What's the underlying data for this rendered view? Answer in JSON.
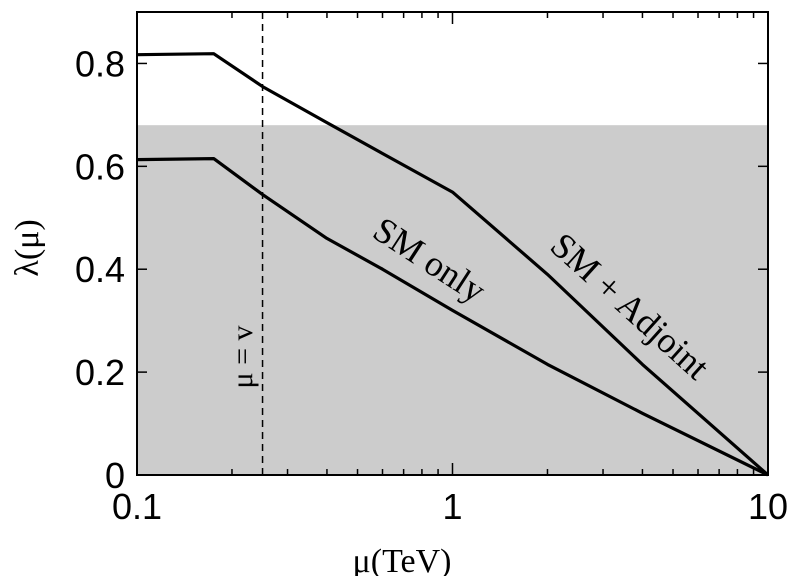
{
  "chart_data": {
    "type": "line",
    "xscale": "log",
    "xlabel": "μ(TeV)",
    "ylabel": "λ(μ)",
    "xlim": [
      0.1,
      10
    ],
    "ylim": [
      0,
      0.9
    ],
    "xticks": [
      {
        "value": 0.1,
        "label": "0.1"
      },
      {
        "value": 1,
        "label": "1"
      },
      {
        "value": 10,
        "label": "10"
      }
    ],
    "yticks": [
      {
        "value": 0,
        "label": "0"
      },
      {
        "value": 0.2,
        "label": "0.2"
      },
      {
        "value": 0.4,
        "label": "0.4"
      },
      {
        "value": 0.6,
        "label": "0.6"
      },
      {
        "value": 0.8,
        "label": "0.8"
      }
    ],
    "shaded_region": {
      "y_min": 0,
      "y_max": 0.68,
      "color": "#cccccc"
    },
    "vline": {
      "x": 0.25,
      "label": "μ = v",
      "style": "dashed"
    },
    "series": [
      {
        "name": "SM + Adjoint",
        "x": [
          0.1,
          0.175,
          0.25,
          0.4,
          0.6,
          1.0,
          2.0,
          4.0,
          10.0
        ],
        "y": [
          0.817,
          0.819,
          0.755,
          0.685,
          0.625,
          0.55,
          0.39,
          0.215,
          0.0
        ]
      },
      {
        "name": "SM only",
        "x": [
          0.1,
          0.175,
          0.25,
          0.4,
          0.6,
          1.0,
          2.0,
          4.0,
          10.0
        ],
        "y": [
          0.613,
          0.615,
          0.545,
          0.46,
          0.4,
          0.32,
          0.215,
          0.12,
          0.0
        ]
      }
    ],
    "grid": false,
    "legend": "none"
  }
}
